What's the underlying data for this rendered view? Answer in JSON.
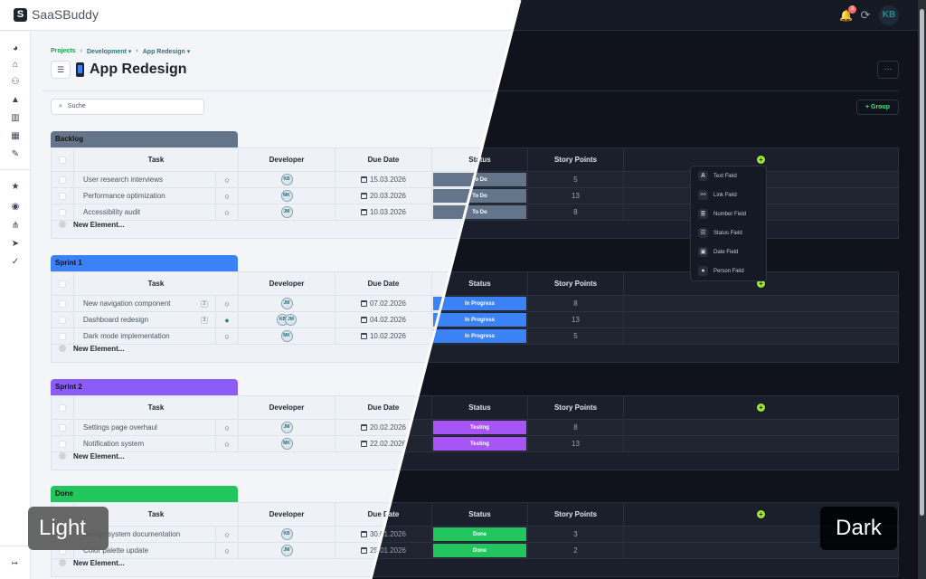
{
  "app": {
    "brand": "SaaSBuddy",
    "logo_glyph": "S"
  },
  "topbar": {
    "notification_count": "3",
    "avatar_initials": "KB",
    "bell_icon": "🔔",
    "refresh_icon": "⟳"
  },
  "sidebar": {
    "items": [
      {
        "name": "dashboard-icon",
        "glyph": "◕"
      },
      {
        "name": "home-icon",
        "glyph": "⌂"
      },
      {
        "name": "team-icon",
        "glyph": "⚇"
      },
      {
        "name": "notifications-icon",
        "glyph": "▲"
      },
      {
        "name": "buildings-icon",
        "glyph": "▥"
      },
      {
        "name": "calendar-icon",
        "glyph": "▦"
      },
      {
        "name": "bandage-icon",
        "glyph": "✎"
      },
      {
        "name": "star-icon",
        "glyph": "★"
      },
      {
        "name": "gamepad-icon",
        "glyph": "◉"
      },
      {
        "name": "network-icon",
        "glyph": "⋔"
      },
      {
        "name": "send-icon",
        "glyph": "➤"
      },
      {
        "name": "checklist-icon",
        "glyph": "✓"
      }
    ],
    "collapse_glyph": "↦"
  },
  "breadcrumb": {
    "items": [
      "Projects",
      "Development ▾",
      "App Redesign ▾"
    ],
    "sep": "›"
  },
  "page": {
    "title": "App Redesign",
    "list_glyph": "☰",
    "more_glyph": "···"
  },
  "search": {
    "placeholder": "Suche",
    "icon": "🔍"
  },
  "toolbar": {
    "group_button": "+ Group"
  },
  "columns": {
    "task": "Task",
    "developer": "Developer",
    "due_date": "Due Date",
    "status": "Status",
    "story_points": "Story Points",
    "add": "+"
  },
  "new_element": "New Element...",
  "groups": [
    {
      "name": "Backlog",
      "color": "#64748b",
      "rows": [
        {
          "task": "User research interviews",
          "count": "",
          "comment_filled": false,
          "devs": [
            "KB"
          ],
          "due": "15.03.2026",
          "status": "To Do",
          "status_color": "#64748b",
          "points": "5"
        },
        {
          "task": "Performance optimization",
          "count": "",
          "comment_filled": false,
          "devs": [
            "MK"
          ],
          "due": "20.03.2026",
          "status": "To Do",
          "status_color": "#64748b",
          "points": "13"
        },
        {
          "task": "Accessibility audit",
          "count": "",
          "comment_filled": false,
          "devs": [
            "JM"
          ],
          "due": "10.03.2026",
          "status": "To Do",
          "status_color": "#64748b",
          "points": "8"
        }
      ]
    },
    {
      "name": "Sprint 1",
      "color": "#3b82f6",
      "rows": [
        {
          "task": "New navigation component",
          "count": "2",
          "comment_filled": false,
          "devs": [
            "JM"
          ],
          "due": "07.02.2026",
          "status": "In Progress",
          "status_color": "#3b82f6",
          "points": "8"
        },
        {
          "task": "Dashboard redesign",
          "count": "3",
          "comment_filled": true,
          "devs": [
            "KB",
            "JM"
          ],
          "due": "04.02.2026",
          "status": "In Progress",
          "status_color": "#3b82f6",
          "points": "13"
        },
        {
          "task": "Dark mode implementation",
          "count": "",
          "comment_filled": false,
          "devs": [
            "MK"
          ],
          "due": "10.02.2026",
          "status": "In Progress",
          "status_color": "#3b82f6",
          "points": "5"
        }
      ]
    },
    {
      "name": "Sprint 2",
      "color": "#8b5cf6",
      "rows": [
        {
          "task": "Settings page overhaul",
          "count": "",
          "comment_filled": false,
          "devs": [
            "JM"
          ],
          "due": "20.02.2026",
          "status": "Testing",
          "status_color": "#a855f7",
          "points": "8"
        },
        {
          "task": "Notification system",
          "count": "",
          "comment_filled": false,
          "devs": [
            "MK"
          ],
          "due": "22.02.2026",
          "status": "Testing",
          "status_color": "#a855f7",
          "points": "13"
        }
      ]
    },
    {
      "name": "Done",
      "color": "#22c55e",
      "rows": [
        {
          "task": "Design system documentation",
          "count": "",
          "comment_filled": false,
          "devs": [
            "KB"
          ],
          "due": "30.01.2026",
          "status": "Done",
          "status_color": "#22c55e",
          "points": "3"
        },
        {
          "task": "Color palette update",
          "count": "",
          "comment_filled": false,
          "devs": [
            "JM"
          ],
          "due": "25.01.2026",
          "status": "Done",
          "status_color": "#22c55e",
          "points": "2"
        }
      ]
    }
  ],
  "field_menu": {
    "items": [
      {
        "label": "Text Field",
        "glyph": "A",
        "name": "text-field-icon"
      },
      {
        "label": "Link Field",
        "glyph": "⚯",
        "name": "link-icon"
      },
      {
        "label": "Number Field",
        "glyph": "≣",
        "name": "number-list-icon"
      },
      {
        "label": "Status Field",
        "glyph": "☰",
        "name": "status-list-icon"
      },
      {
        "label": "Date Field",
        "glyph": "▣",
        "name": "date-icon"
      },
      {
        "label": "Person Field",
        "glyph": "●",
        "name": "person-icon"
      }
    ]
  },
  "theme_labels": {
    "light": "Light",
    "dark": "Dark"
  }
}
